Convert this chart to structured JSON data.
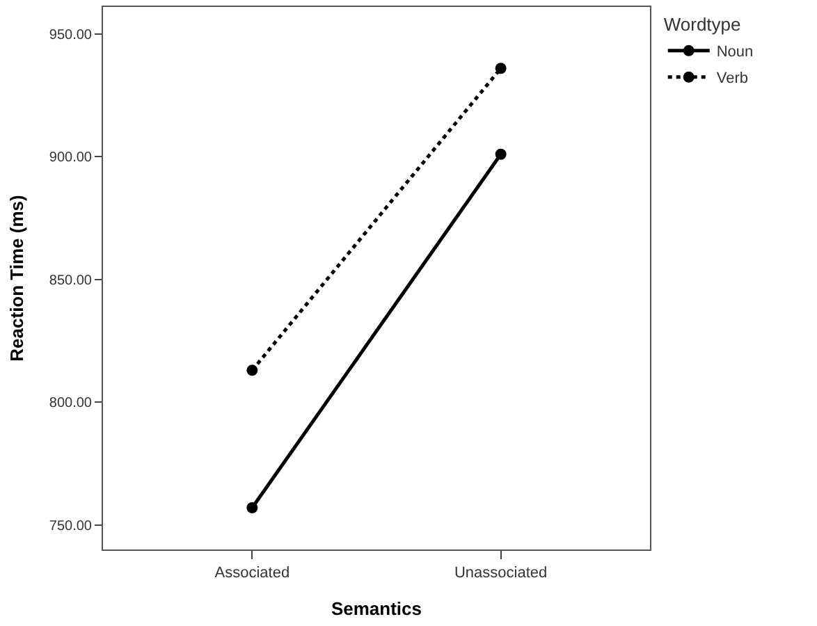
{
  "chart_data": {
    "type": "line",
    "xlabel": "Semantics",
    "ylabel": "Reaction Time (ms)",
    "legend_title": "Wordtype",
    "legend": "top right",
    "marker": "circle",
    "categories": [
      "Associated",
      "Unassociated"
    ],
    "ylim": [
      740,
      961
    ],
    "yticks": [
      {
        "value": 750,
        "label": "750.00"
      },
      {
        "value": 800,
        "label": "800.00"
      },
      {
        "value": 850,
        "label": "850.00"
      },
      {
        "value": 900,
        "label": "900.00"
      },
      {
        "value": 950,
        "label": "950.00"
      }
    ],
    "series": [
      {
        "name": "Noun",
        "color": "#000000",
        "line_style": "solid",
        "values": [
          757,
          901
        ]
      },
      {
        "name": "Verb",
        "color": "#000000",
        "line_style": "dotted",
        "values": [
          813,
          936
        ]
      }
    ]
  }
}
